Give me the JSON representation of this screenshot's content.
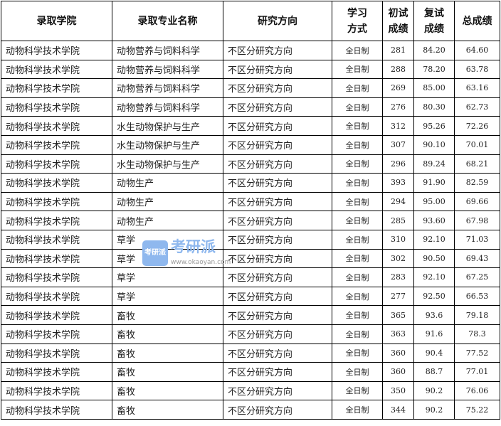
{
  "headers": [
    "录取学院",
    "录取专业名称",
    "研究方向",
    "学习\n方式",
    "初试\n成绩",
    "复试\n成绩",
    "总成绩"
  ],
  "rows": [
    [
      "动物科学技术学院",
      "动物营养与饲料科学",
      "不区分研究方向",
      "全日制",
      "281",
      "84.20",
      "64.60"
    ],
    [
      "动物科学技术学院",
      "动物营养与饲料科学",
      "不区分研究方向",
      "全日制",
      "288",
      "78.20",
      "63.78"
    ],
    [
      "动物科学技术学院",
      "动物营养与饲料科学",
      "不区分研究方向",
      "全日制",
      "269",
      "85.00",
      "63.16"
    ],
    [
      "动物科学技术学院",
      "动物营养与饲料科学",
      "不区分研究方向",
      "全日制",
      "276",
      "80.30",
      "62.73"
    ],
    [
      "动物科学技术学院",
      "水生动物保护与生产",
      "不区分研究方向",
      "全日制",
      "312",
      "95.26",
      "72.26"
    ],
    [
      "动物科学技术学院",
      "水生动物保护与生产",
      "不区分研究方向",
      "全日制",
      "307",
      "90.10",
      "70.01"
    ],
    [
      "动物科学技术学院",
      "水生动物保护与生产",
      "不区分研究方向",
      "全日制",
      "296",
      "89.24",
      "68.21"
    ],
    [
      "动物科学技术学院",
      "动物生产",
      "不区分研究方向",
      "全日制",
      "393",
      "91.90",
      "82.59"
    ],
    [
      "动物科学技术学院",
      "动物生产",
      "不区分研究方向",
      "全日制",
      "294",
      "95.00",
      "69.66"
    ],
    [
      "动物科学技术学院",
      "动物生产",
      "不区分研究方向",
      "全日制",
      "285",
      "93.60",
      "67.98"
    ],
    [
      "动物科学技术学院",
      "草学",
      "不区分研究方向",
      "全日制",
      "310",
      "92.10",
      "71.03"
    ],
    [
      "动物科学技术学院",
      "草学",
      "不区分研究方向",
      "全日制",
      "302",
      "90.50",
      "69.43"
    ],
    [
      "动物科学技术学院",
      "草学",
      "不区分研究方向",
      "全日制",
      "283",
      "92.10",
      "67.25"
    ],
    [
      "动物科学技术学院",
      "草学",
      "不区分研究方向",
      "全日制",
      "277",
      "92.50",
      "66.53"
    ],
    [
      "动物科学技术学院",
      "畜牧",
      "不区分研究方向",
      "全日制",
      "365",
      "93.6",
      "79.18"
    ],
    [
      "动物科学技术学院",
      "畜牧",
      "不区分研究方向",
      "全日制",
      "363",
      "91.6",
      "78.3"
    ],
    [
      "动物科学技术学院",
      "畜牧",
      "不区分研究方向",
      "全日制",
      "360",
      "90.4",
      "77.52"
    ],
    [
      "动物科学技术学院",
      "畜牧",
      "不区分研究方向",
      "全日制",
      "360",
      "88.7",
      "77.01"
    ],
    [
      "动物科学技术学院",
      "畜牧",
      "不区分研究方向",
      "全日制",
      "350",
      "90.2",
      "76.06"
    ],
    [
      "动物科学技术学院",
      "畜牧",
      "不区分研究方向",
      "全日制",
      "344",
      "90.2",
      "75.22"
    ]
  ],
  "watermark": {
    "logo": "考研派",
    "brand": "考研派",
    "url": "www.okaoyan.com"
  }
}
